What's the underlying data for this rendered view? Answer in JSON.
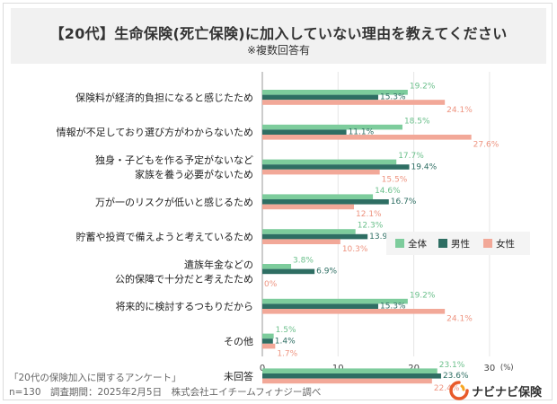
{
  "header": {
    "title": "【20代】生命保険(死亡保険)に加入していない理由を教えてください",
    "subtitle": "※複数回答有"
  },
  "chart_data": {
    "type": "bar",
    "orientation": "horizontal",
    "categories": [
      [
        "保険料が経済的負担になると感じたため"
      ],
      [
        "情報が不足しており選び方がわからないため"
      ],
      [
        "独身・子どもを作る予定がないなど",
        "家族を養う必要がないため"
      ],
      [
        "万が一のリスクが低いと感じるため"
      ],
      [
        "貯蓄や投資で備えようと考えているため"
      ],
      [
        "遺族年金などの",
        "公的保障で十分だと考えたため"
      ],
      [
        "将来的に検討するつもりだから"
      ],
      [
        "その他"
      ],
      [
        "未回答"
      ]
    ],
    "series": [
      {
        "name": "全体",
        "color": "#7dcc9c",
        "values": [
          19.2,
          18.5,
          17.7,
          14.6,
          12.3,
          3.8,
          19.2,
          1.5,
          23.1
        ]
      },
      {
        "name": "男性",
        "color": "#2e6e63",
        "values": [
          15.3,
          11.1,
          19.4,
          16.7,
          13.9,
          6.9,
          15.3,
          1.4,
          23.6
        ]
      },
      {
        "name": "女性",
        "color": "#f2a898",
        "values": [
          24.1,
          27.6,
          15.5,
          12.1,
          10.3,
          0,
          24.1,
          1.7,
          22.4
        ]
      }
    ],
    "label_colors": [
      "#6cc08c",
      "#2e6e63",
      "#ee9480"
    ],
    "value_labels": [
      [
        "19.2%",
        "18.5%",
        "17.7%",
        "14.6%",
        "12.3%",
        "3.8%",
        "19.2%",
        "1.5%",
        "23.1%"
      ],
      [
        "15.3%",
        "11.1%",
        "19.4%",
        "16.7%",
        "13.9%",
        "6.9%",
        "15.3%",
        "1.4%",
        "23.6%"
      ],
      [
        "24.1%",
        "27.6%",
        "15.5%",
        "12.1%",
        "10.3%",
        "0%",
        "24.1%",
        "1.7%",
        "22.4%"
      ]
    ],
    "x_ticks": [
      "0",
      "10",
      "20",
      "30"
    ],
    "x_unit": "(%)",
    "xlim": [
      0,
      30
    ],
    "legend_position": "right"
  },
  "footer": {
    "survey": "「20代の保険加入に関するアンケート」",
    "details": "n=130　調査期間：2025年2月5日　株式会社エイチームフィナジー調べ"
  },
  "brand": {
    "name": "ナビナビ保険",
    "accent": "#e85a2a",
    "accent2": "#f7a623"
  }
}
